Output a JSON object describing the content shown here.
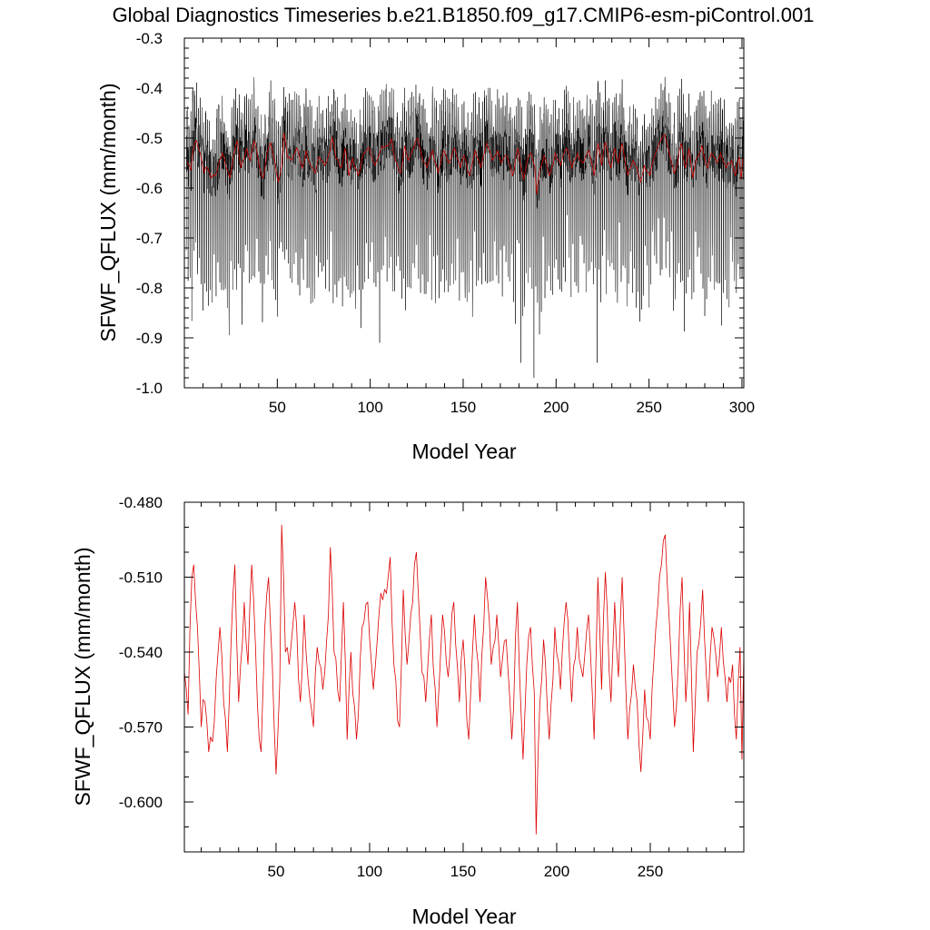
{
  "chart_data": [
    {
      "type": "line",
      "title": "Global Diagnostics Timeseries b.e21.B1850.f09_g17.CMIP6-esm-piControl.001",
      "xlabel": "Model Year",
      "ylabel": "SFWF_QFLUX (mm/month)",
      "xlim": [
        0,
        301
      ],
      "ylim": [
        -1.0,
        -0.3
      ],
      "xticks": [
        50,
        100,
        150,
        200,
        250,
        300
      ],
      "xtick_labels": [
        "50",
        "100",
        "150",
        "200",
        "250",
        "300"
      ],
      "yticks": [
        -0.3,
        -0.4,
        -0.5,
        -0.6,
        -0.7,
        -0.8,
        -0.9,
        -1.0
      ],
      "ytick_labels": [
        "-0.3",
        "-0.4",
        "-0.5",
        "-0.6",
        "-0.7",
        "-0.8",
        "-0.9",
        "-1.0"
      ],
      "series": [
        {
          "name": "monthly",
          "color": "#000000",
          "description": "Monthly global mean values, year 1 to 301, oscillating mostly between -0.75 and -0.40",
          "approx_mean": -0.54,
          "approx_range": [
            -0.98,
            -0.35
          ],
          "notable_minima": [
            {
              "year": 188,
              "value": -0.98
            },
            {
              "year": 181,
              "value": -0.95
            },
            {
              "year": 222,
              "value": -0.95
            },
            {
              "year": 105,
              "value": -0.91
            }
          ]
        },
        {
          "name": "annual mean",
          "color": "#cc0000",
          "description": "Annual mean overlay (same values as lower panel)"
        }
      ]
    },
    {
      "type": "line",
      "title": "",
      "xlabel": "Model Year",
      "ylabel": "SFWF_QFLUX (mm/month)",
      "xlim": [
        1,
        300
      ],
      "ylim": [
        -0.62,
        -0.48
      ],
      "xticks": [
        50,
        100,
        150,
        200,
        250
      ],
      "xtick_labels": [
        "50",
        "100",
        "150",
        "200",
        "250"
      ],
      "yticks": [
        -0.48,
        -0.51,
        -0.54,
        -0.57,
        -0.6
      ],
      "ytick_labels": [
        "-0.480",
        "-0.510",
        "-0.540",
        "-0.570",
        "-0.600"
      ],
      "series": [
        {
          "name": "annual mean",
          "color": "#dd0000",
          "x_start": 1,
          "approx_range": [
            -0.613,
            -0.489
          ],
          "keypoints": [
            [
              1,
              -0.548
            ],
            [
              3,
              -0.565
            ],
            [
              4,
              -0.53
            ],
            [
              5,
              -0.51
            ],
            [
              6,
              -0.505
            ],
            [
              8,
              -0.53
            ],
            [
              10,
              -0.57
            ],
            [
              12,
              -0.56
            ],
            [
              14,
              -0.58
            ],
            [
              17,
              -0.568
            ],
            [
              20,
              -0.53
            ],
            [
              22,
              -0.56
            ],
            [
              24,
              -0.58
            ],
            [
              26,
              -0.535
            ],
            [
              28,
              -0.505
            ],
            [
              30,
              -0.56
            ],
            [
              33,
              -0.52
            ],
            [
              35,
              -0.545
            ],
            [
              37,
              -0.505
            ],
            [
              40,
              -0.56
            ],
            [
              42,
              -0.58
            ],
            [
              44,
              -0.53
            ],
            [
              46,
              -0.51
            ],
            [
              48,
              -0.545
            ],
            [
              50,
              -0.589
            ],
            [
              52,
              -0.552
            ],
            [
              53,
              -0.489
            ],
            [
              55,
              -0.54
            ],
            [
              57,
              -0.545
            ],
            [
              60,
              -0.52
            ],
            [
              63,
              -0.56
            ],
            [
              65,
              -0.525
            ],
            [
              67,
              -0.55
            ],
            [
              70,
              -0.57
            ],
            [
              72,
              -0.538
            ],
            [
              75,
              -0.555
            ],
            [
              78,
              -0.525
            ],
            [
              79,
              -0.498
            ],
            [
              81,
              -0.54
            ],
            [
              84,
              -0.56
            ],
            [
              86,
              -0.52
            ],
            [
              88,
              -0.575
            ],
            [
              90,
              -0.54
            ],
            [
              93,
              -0.575
            ],
            [
              96,
              -0.53
            ],
            [
              99,
              -0.52
            ],
            [
              102,
              -0.555
            ],
            [
              105,
              -0.525
            ],
            [
              108,
              -0.515
            ],
            [
              111,
              -0.502
            ],
            [
              113,
              -0.545
            ],
            [
              116,
              -0.57
            ],
            [
              118,
              -0.515
            ],
            [
              120,
              -0.545
            ],
            [
              122,
              -0.525
            ],
            [
              125,
              -0.5
            ],
            [
              128,
              -0.548
            ],
            [
              130,
              -0.56
            ],
            [
              133,
              -0.525
            ],
            [
              136,
              -0.57
            ],
            [
              139,
              -0.525
            ],
            [
              142,
              -0.55
            ],
            [
              145,
              -0.52
            ],
            [
              148,
              -0.56
            ],
            [
              150,
              -0.535
            ],
            [
              153,
              -0.575
            ],
            [
              156,
              -0.525
            ],
            [
              159,
              -0.56
            ],
            [
              162,
              -0.51
            ],
            [
              165,
              -0.545
            ],
            [
              168,
              -0.525
            ],
            [
              170,
              -0.55
            ],
            [
              173,
              -0.535
            ],
            [
              176,
              -0.575
            ],
            [
              179,
              -0.52
            ],
            [
              182,
              -0.583
            ],
            [
              184,
              -0.545
            ],
            [
              186,
              -0.53
            ],
            [
              188,
              -0.556
            ],
            [
              189,
              -0.613
            ],
            [
              191,
              -0.56
            ],
            [
              193,
              -0.535
            ],
            [
              196,
              -0.575
            ],
            [
              199,
              -0.53
            ],
            [
              202,
              -0.555
            ],
            [
              205,
              -0.52
            ],
            [
              208,
              -0.56
            ],
            [
              211,
              -0.53
            ],
            [
              214,
              -0.55
            ],
            [
              217,
              -0.525
            ],
            [
              220,
              -0.575
            ],
            [
              222,
              -0.51
            ],
            [
              224,
              -0.555
            ],
            [
              226,
              -0.508
            ],
            [
              229,
              -0.56
            ],
            [
              231,
              -0.52
            ],
            [
              233,
              -0.55
            ],
            [
              235,
              -0.51
            ],
            [
              238,
              -0.575
            ],
            [
              241,
              -0.545
            ],
            [
              243,
              -0.56
            ],
            [
              245,
              -0.588
            ],
            [
              247,
              -0.555
            ],
            [
              250,
              -0.575
            ],
            [
              253,
              -0.53
            ],
            [
              256,
              -0.505
            ],
            [
              258,
              -0.493
            ],
            [
              260,
              -0.525
            ],
            [
              263,
              -0.57
            ],
            [
              265,
              -0.545
            ],
            [
              267,
              -0.51
            ],
            [
              269,
              -0.56
            ],
            [
              271,
              -0.52
            ],
            [
              273,
              -0.58
            ],
            [
              275,
              -0.54
            ],
            [
              278,
              -0.515
            ],
            [
              281,
              -0.56
            ],
            [
              283,
              -0.53
            ],
            [
              286,
              -0.55
            ],
            [
              288,
              -0.53
            ],
            [
              291,
              -0.56
            ],
            [
              294,
              -0.545
            ],
            [
              296,
              -0.575
            ],
            [
              298,
              -0.538
            ],
            [
              299,
              -0.583
            ],
            [
              300,
              -0.54
            ]
          ]
        }
      ]
    }
  ]
}
